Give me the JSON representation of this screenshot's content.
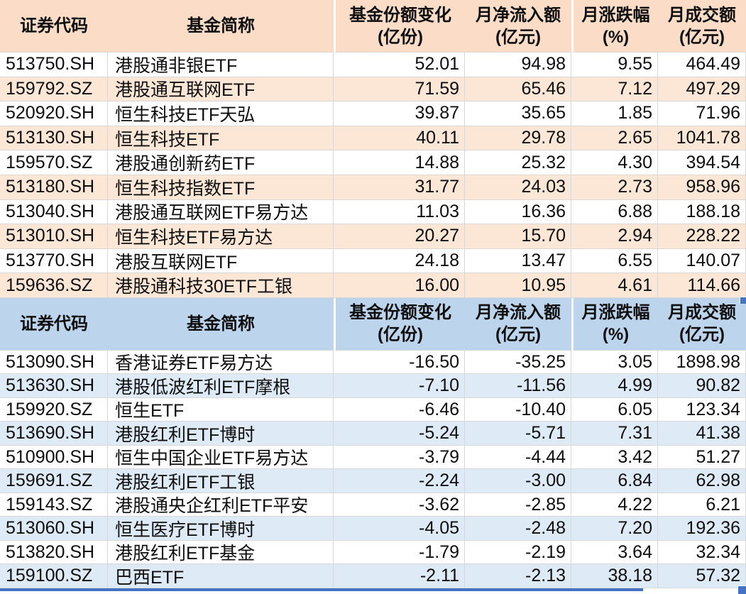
{
  "app": {
    "kind": "spreadsheet-table-screenshot",
    "colors": {
      "inflow_header_bg": "#FADCC7",
      "inflow_band_bg": "#FCE7D7",
      "outflow_header_bg": "#BCD5EC",
      "outflow_band_bg": "#DEEAF5",
      "gridline": "#D8D8D8",
      "selection_border": "#4472C4",
      "text": "#0E0E0E"
    }
  },
  "tables": [
    {
      "name": "fund-inflow-table",
      "theme": "peach",
      "columns": [
        {
          "key": "code",
          "label": "证券代码",
          "sub": "",
          "sep": false
        },
        {
          "key": "name",
          "label": "基金简称",
          "sub": "",
          "sep": false
        },
        {
          "key": "share-change",
          "label": "基金份额变化",
          "sub": "(亿份)",
          "sep": true
        },
        {
          "key": "net-inflow",
          "label": "月净流入额",
          "sub": "(亿元)",
          "sep": false
        },
        {
          "key": "pct-change",
          "label": "月涨跌幅",
          "sub": "(%)",
          "sep": true
        },
        {
          "key": "turnover",
          "label": "月成交额",
          "sub": "(亿元)",
          "sep": false
        }
      ],
      "rows": [
        [
          "513750.SH",
          "港股通非银ETF",
          "52.01",
          "94.98",
          "9.55",
          "464.49"
        ],
        [
          "159792.SZ",
          "港股通互联网ETF",
          "71.59",
          "65.46",
          "7.12",
          "497.29"
        ],
        [
          "520920.SH",
          "恒生科技ETF天弘",
          "39.87",
          "35.65",
          "1.85",
          "71.96"
        ],
        [
          "513130.SH",
          "恒生科技ETF",
          "40.11",
          "29.78",
          "2.65",
          "1041.78"
        ],
        [
          "159570.SZ",
          "港股通创新药ETF",
          "14.88",
          "25.32",
          "4.30",
          "394.54"
        ],
        [
          "513180.SH",
          "恒生科技指数ETF",
          "31.77",
          "24.03",
          "2.73",
          "958.96"
        ],
        [
          "513040.SH",
          "港股通互联网ETF易方达",
          "11.03",
          "16.36",
          "6.88",
          "188.18"
        ],
        [
          "513010.SH",
          "恒生科技ETF易方达",
          "20.27",
          "15.70",
          "2.94",
          "228.22"
        ],
        [
          "513770.SH",
          "港股互联网ETF",
          "24.18",
          "13.47",
          "6.55",
          "140.07"
        ],
        [
          "159636.SZ",
          "港股通科技30ETF工银",
          "16.00",
          "10.95",
          "4.61",
          "114.66"
        ]
      ]
    },
    {
      "name": "fund-outflow-table",
      "theme": "blue",
      "columns": [
        {
          "key": "code",
          "label": "证券代码",
          "sub": "",
          "sep": false
        },
        {
          "key": "name",
          "label": "基金简称",
          "sub": "",
          "sep": false
        },
        {
          "key": "share-change",
          "label": "基金份额变化",
          "sub": "(亿份)",
          "sep": true
        },
        {
          "key": "net-inflow",
          "label": "月净流入额",
          "sub": "(亿元)",
          "sep": false
        },
        {
          "key": "pct-change",
          "label": "月涨跌幅",
          "sub": "(%)",
          "sep": true
        },
        {
          "key": "turnover",
          "label": "月成交额",
          "sub": "(亿元)",
          "sep": false
        }
      ],
      "rows": [
        [
          "513090.SH",
          "香港证券ETF易方达",
          "-16.50",
          "-35.25",
          "3.05",
          "1898.98"
        ],
        [
          "513630.SH",
          "港股低波红利ETF摩根",
          "-7.10",
          "-11.56",
          "4.99",
          "90.82"
        ],
        [
          "159920.SZ",
          "恒生ETF",
          "-6.46",
          "-10.40",
          "6.05",
          "123.34"
        ],
        [
          "513690.SH",
          "港股红利ETF博时",
          "-5.24",
          "-5.71",
          "7.31",
          "41.38"
        ],
        [
          "510900.SH",
          "恒生中国企业ETF易方达",
          "-3.79",
          "-4.44",
          "3.42",
          "51.27"
        ],
        [
          "159691.SZ",
          "港股红利ETF工银",
          "-2.24",
          "-3.00",
          "6.84",
          "62.98"
        ],
        [
          "159143.SZ",
          "港股通央企红利ETF平安",
          "-3.62",
          "-2.85",
          "4.22",
          "6.21"
        ],
        [
          "513060.SH",
          "恒生医疗ETF博时",
          "-4.05",
          "-2.48",
          "7.20",
          "192.36"
        ],
        [
          "513820.SH",
          "港股红利ETF基金",
          "-1.79",
          "-2.19",
          "3.64",
          "32.34"
        ],
        [
          "159100.SZ",
          "巴西ETF",
          "-2.11",
          "-2.13",
          "38.18",
          "57.32"
        ]
      ]
    }
  ]
}
